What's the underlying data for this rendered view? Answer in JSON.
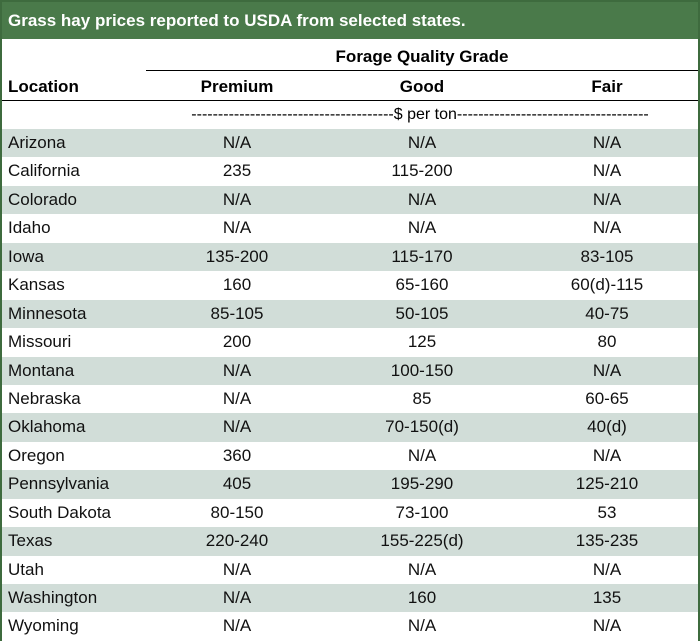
{
  "title": "Grass hay prices reported to USDA from selected states.",
  "header": {
    "group_label": "Forage Quality Grade",
    "location_label": "Location",
    "columns": [
      "Premium",
      "Good",
      "Fair"
    ]
  },
  "unit_label": "--------------------------------------$ per ton------------------------------------",
  "rows": [
    {
      "location": "Arizona",
      "premium": "N/A",
      "good": "N/A",
      "fair": "N/A"
    },
    {
      "location": "California",
      "premium": "235",
      "good": "115-200",
      "fair": "N/A"
    },
    {
      "location": "Colorado",
      "premium": "N/A",
      "good": "N/A",
      "fair": "N/A"
    },
    {
      "location": "Idaho",
      "premium": "N/A",
      "good": "N/A",
      "fair": "N/A"
    },
    {
      "location": "Iowa",
      "premium": "135-200",
      "good": "115-170",
      "fair": "83-105"
    },
    {
      "location": "Kansas",
      "premium": "160",
      "good": "65-160",
      "fair": "60(d)-115"
    },
    {
      "location": "Minnesota",
      "premium": "85-105",
      "good": "50-105",
      "fair": "40-75"
    },
    {
      "location": "Missouri",
      "premium": "200",
      "good": "125",
      "fair": "80"
    },
    {
      "location": "Montana",
      "premium": "N/A",
      "good": "100-150",
      "fair": "N/A"
    },
    {
      "location": "Nebraska",
      "premium": "N/A",
      "good": "85",
      "fair": "60-65"
    },
    {
      "location": "Oklahoma",
      "premium": "N/A",
      "good": "70-150(d)",
      "fair": "40(d)"
    },
    {
      "location": "Oregon",
      "premium": "360",
      "good": "N/A",
      "fair": "N/A"
    },
    {
      "location": "Pennsylvania",
      "premium": "405",
      "good": "195-290",
      "fair": "125-210"
    },
    {
      "location": "South Dakota",
      "premium": "80-150",
      "good": "73-100",
      "fair": "53"
    },
    {
      "location": "Texas",
      "premium": "220-240",
      "good": "155-225(d)",
      "fair": "135-235"
    },
    {
      "location": "Utah",
      "premium": "N/A",
      "good": "N/A",
      "fair": "N/A"
    },
    {
      "location": "Washington",
      "premium": "N/A",
      "good": "160",
      "fair": "135"
    },
    {
      "location": "Wyoming",
      "premium": "N/A",
      "good": "N/A",
      "fair": "N/A"
    }
  ],
  "colors": {
    "title_bg": "#4a7a4a",
    "title_text": "#ffffff",
    "shaded_row": "#d1ddd8",
    "plain_row": "#ffffff",
    "border": "#3e6b3e"
  }
}
